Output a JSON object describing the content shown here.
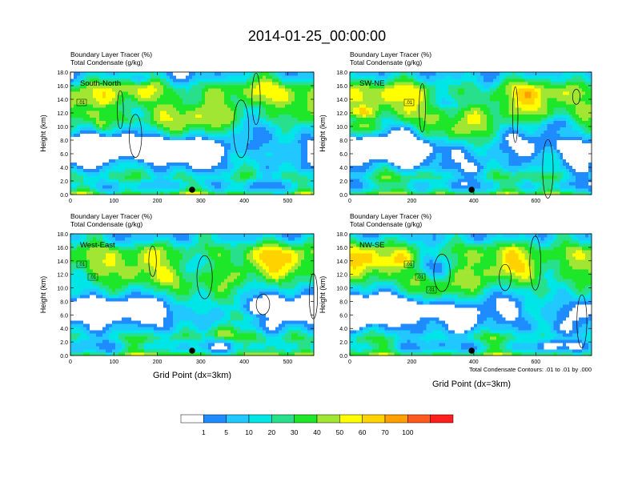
{
  "figure": {
    "title": "2014-01-25_00:00:00",
    "panel_line1": "Boundary Layer Tracer   (%)",
    "panel_line2": "Total Condensate   (g/kg)",
    "ylabel": "Height (km)",
    "xlabel": "Grid Point (dx=3km)",
    "contour_note": "Total Condensate Contours: .01 to .01 by .000"
  },
  "colors": {
    "levels": [
      "#ffffff",
      "#1e8cff",
      "#20c8ff",
      "#00e6e6",
      "#28e08c",
      "#1ee628",
      "#a0e632",
      "#ffff00",
      "#ffd200",
      "#ffa000",
      "#ff5a1e",
      "#ff1e1e"
    ]
  },
  "chart_data": [
    {
      "type": "heatmap",
      "label": "South-North",
      "x_ticks": [
        "0",
        "100",
        "200",
        "300",
        "400",
        "500"
      ],
      "xlim": [
        0,
        560
      ],
      "y_ticks": [
        "0.0",
        "2.0",
        "4.0",
        "6.0",
        "8.0",
        "10.0",
        "12.0",
        "14.0",
        "16.0",
        "18.0"
      ],
      "ylim": [
        0,
        18
      ],
      "marker_x": 280,
      "contour_labels": [
        ".01"
      ]
    },
    {
      "type": "heatmap",
      "label": "SW-NE",
      "x_ticks": [
        "0",
        "200",
        "400",
        "600"
      ],
      "xlim": [
        0,
        780
      ],
      "y_ticks": [
        "0.0",
        "2.0",
        "4.0",
        "6.0",
        "8.0",
        "10.0",
        "12.0",
        "14.0",
        "16.0",
        "18.0"
      ],
      "ylim": [
        0,
        18
      ],
      "marker_x": 393,
      "contour_labels": [
        ".01"
      ]
    },
    {
      "type": "heatmap",
      "label": "West-East",
      "x_ticks": [
        "0",
        "100",
        "200",
        "300",
        "400",
        "500"
      ],
      "xlim": [
        0,
        560
      ],
      "y_ticks": [
        "0.0",
        "2.0",
        "4.0",
        "6.0",
        "8.0",
        "10.0",
        "12.0",
        "14.0",
        "16.0",
        "18.0"
      ],
      "ylim": [
        0,
        18
      ],
      "marker_x": 280,
      "contour_labels": [
        ".01",
        ".01"
      ]
    },
    {
      "type": "heatmap",
      "label": "NW-SE",
      "x_ticks": [
        "0",
        "200",
        "400",
        "600"
      ],
      "xlim": [
        0,
        780
      ],
      "y_ticks": [
        "0.0",
        "2.0",
        "4.0",
        "6.0",
        "8.0",
        "10.0",
        "12.0",
        "14.0",
        "16.0",
        "18.0"
      ],
      "ylim": [
        0,
        18
      ],
      "marker_x": 393,
      "contour_labels": [
        ".01",
        ".01",
        ".01"
      ]
    }
  ],
  "colorbar": {
    "labels": [
      "1",
      "5",
      "10",
      "20",
      "30",
      "40",
      "50",
      "60",
      "70",
      "100"
    ]
  }
}
